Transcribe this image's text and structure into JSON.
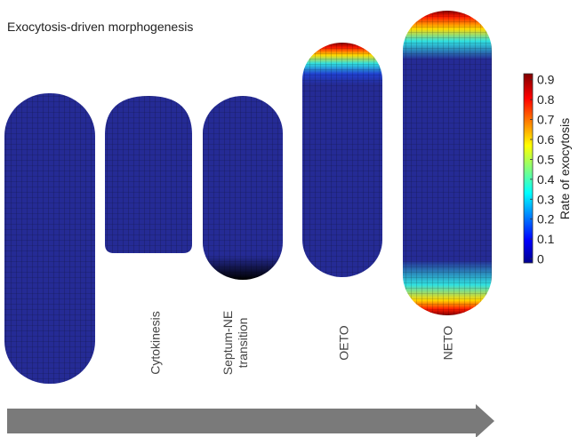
{
  "title": "Exocytosis-driven morphogenesis",
  "stages": [
    [
      "Cytokinesis"
    ],
    [
      "Septum-NE",
      "transition"
    ],
    [
      "OETO"
    ],
    [
      "NETO"
    ]
  ],
  "colorbar": {
    "label": "Rate of exocytosis",
    "lim": [
      -0.02,
      0.93
    ],
    "ticks": [
      0,
      0.1,
      0.2,
      0.3,
      0.4,
      0.5,
      0.6,
      0.7,
      0.8,
      0.9
    ]
  }
}
